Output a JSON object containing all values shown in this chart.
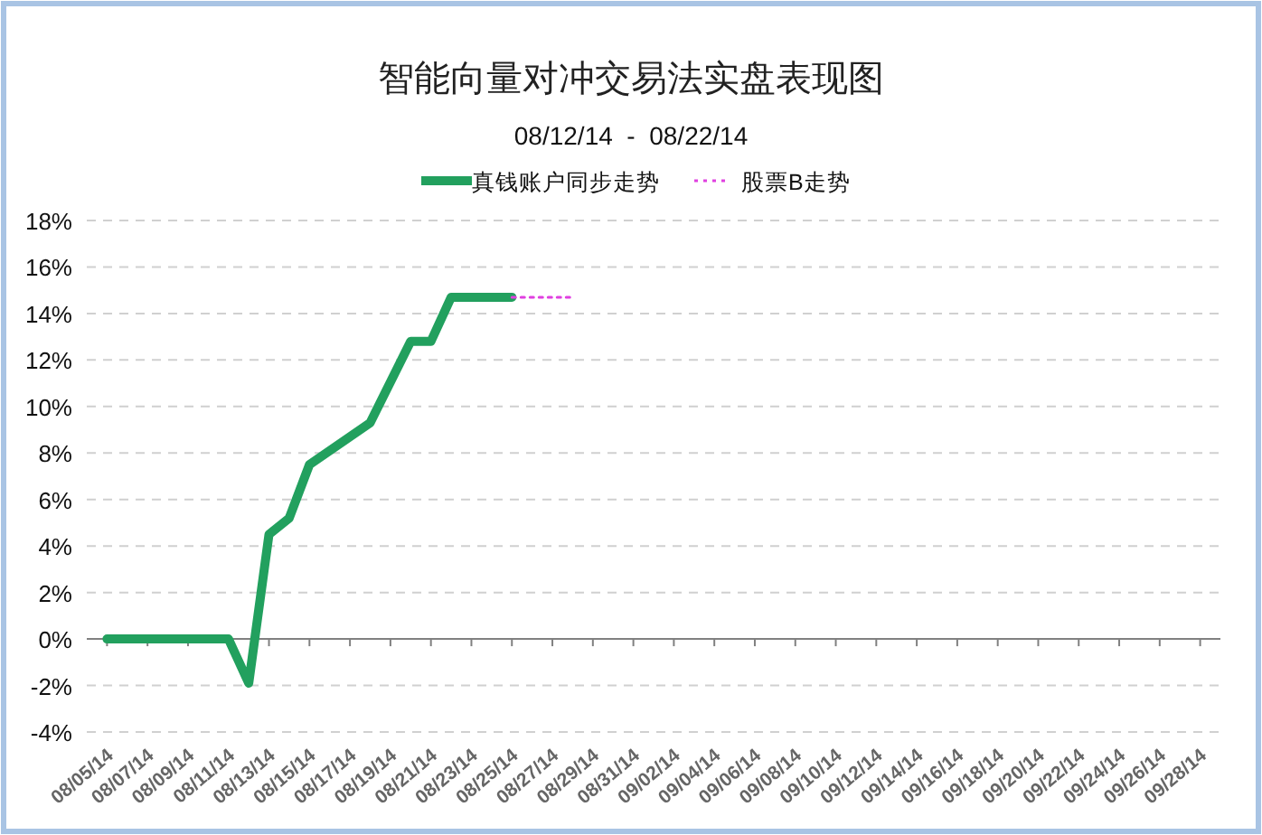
{
  "chart_data": {
    "type": "line",
    "title": "智能向量对冲交易法实盘表现图",
    "subtitle": "08/12/14  -  08/22/14",
    "series": [
      {
        "name": "真钱账户同步走势",
        "color": "#22a05e",
        "line_style": "solid",
        "x": [
          "--08-05",
          "--08-11",
          "--08-12",
          "--08-13",
          "--08-14",
          "--08-15",
          "--08-18",
          "--08-20",
          "--08-21",
          "--08-22",
          "--08-25"
        ],
        "values": [
          0,
          0,
          -1.9,
          4.5,
          5.2,
          7.5,
          9.3,
          12.8,
          12.8,
          14.7,
          14.7
        ]
      },
      {
        "name": "股票B走势",
        "color": "#e040e0",
        "line_style": "dotted",
        "x": [
          "--08-25",
          "--08-28"
        ],
        "values": [
          14.7,
          14.7
        ]
      }
    ],
    "xlim": [
      "--08-04",
      "--09-29"
    ],
    "xticks": [
      {
        "value": "--08-05",
        "label": "08/05/14"
      },
      {
        "value": "--08-07",
        "label": "08/07/14"
      },
      {
        "value": "--08-09",
        "label": "08/09/14"
      },
      {
        "value": "--08-11",
        "label": "08/11/14"
      },
      {
        "value": "--08-13",
        "label": "08/13/14"
      },
      {
        "value": "--08-15",
        "label": "08/15/14"
      },
      {
        "value": "--08-17",
        "label": "08/17/14"
      },
      {
        "value": "--08-19",
        "label": "08/19/14"
      },
      {
        "value": "--08-21",
        "label": "08/21/14"
      },
      {
        "value": "--08-23",
        "label": "08/23/14"
      },
      {
        "value": "--08-25",
        "label": "08/25/14"
      },
      {
        "value": "--08-27",
        "label": "08/27/14"
      },
      {
        "value": "--08-29",
        "label": "08/29/14"
      },
      {
        "value": "--08-31",
        "label": "08/31/14"
      },
      {
        "value": "--09-02",
        "label": "09/02/14"
      },
      {
        "value": "--09-04",
        "label": "09/04/14"
      },
      {
        "value": "--09-06",
        "label": "09/06/14"
      },
      {
        "value": "--09-08",
        "label": "09/08/14"
      },
      {
        "value": "--09-10",
        "label": "09/10/14"
      },
      {
        "value": "--09-12",
        "label": "09/12/14"
      },
      {
        "value": "--09-14",
        "label": "09/14/14"
      },
      {
        "value": "--09-16",
        "label": "09/16/14"
      },
      {
        "value": "--09-18",
        "label": "09/18/14"
      },
      {
        "value": "--09-20",
        "label": "09/20/14"
      },
      {
        "value": "--09-22",
        "label": "09/22/14"
      },
      {
        "value": "--09-24",
        "label": "09/24/14"
      },
      {
        "value": "--09-26",
        "label": "09/26/14"
      },
      {
        "value": "--09-28",
        "label": "09/28/14"
      }
    ],
    "ylim": [
      -4,
      18
    ],
    "yticks": [
      {
        "value": -4,
        "label": "-4%"
      },
      {
        "value": -2,
        "label": "-2%"
      },
      {
        "value": 0,
        "label": "0%"
      },
      {
        "value": 2,
        "label": "2%"
      },
      {
        "value": 4,
        "label": "4%"
      },
      {
        "value": 6,
        "label": "6%"
      },
      {
        "value": 8,
        "label": "8%"
      },
      {
        "value": 10,
        "label": "10%"
      },
      {
        "value": 12,
        "label": "12%"
      },
      {
        "value": 14,
        "label": "14%"
      },
      {
        "value": 16,
        "label": "16%"
      },
      {
        "value": 18,
        "label": "18%"
      }
    ],
    "grid": "y",
    "legend": "top",
    "marker": "none"
  }
}
